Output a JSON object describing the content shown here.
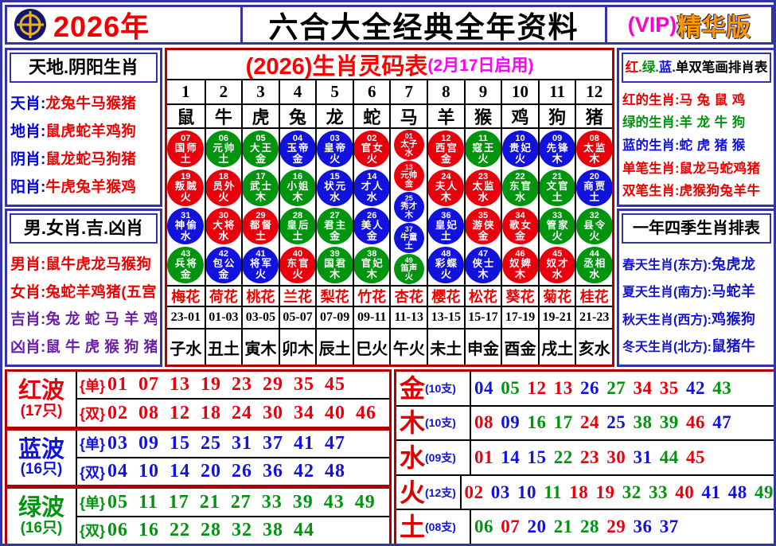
{
  "header": {
    "year": "2026年",
    "title": "六合大全经典全年资料",
    "vip_prefix": "(VIP)",
    "vip_suffix": "精华版"
  },
  "palette": {
    "red": "#e8000d",
    "blue": "#1212dd",
    "green": "#00940f",
    "label_blue": "#0000e6",
    "text_red": "#ee0000",
    "purple": "#6a1fa8",
    "magenta": "#ff00ff",
    "season_blue": "#1414cc"
  },
  "ball_color_sets": {
    "red": [
      1,
      2,
      7,
      8,
      12,
      13,
      18,
      19,
      23,
      24,
      29,
      30,
      34,
      35,
      40,
      45,
      46
    ],
    "blue": [
      3,
      4,
      9,
      10,
      14,
      15,
      20,
      25,
      26,
      31,
      36,
      37,
      41,
      42,
      47,
      48
    ],
    "green": [
      5,
      6,
      11,
      16,
      17,
      21,
      22,
      27,
      28,
      32,
      33,
      38,
      39,
      43,
      44,
      49
    ]
  },
  "left_panel": {
    "section1": {
      "title": "天地.阴阳生肖",
      "rows": [
        {
          "label": "天肖",
          "value": "龙兔牛马猴猪",
          "scheme": "bluered"
        },
        {
          "label": "地肖",
          "value": "鼠虎蛇羊鸡狗",
          "scheme": "bluered"
        },
        {
          "label": "阴肖",
          "value": "鼠龙蛇马狗猪",
          "scheme": "bluered"
        },
        {
          "label": "阳肖",
          "value": "牛虎兔羊猴鸡",
          "scheme": "bluered"
        }
      ]
    },
    "section2": {
      "title": "男.女肖.吉.凶肖",
      "rows": [
        {
          "label": "男肖",
          "value": "鼠牛虎龙马猴狗",
          "scheme": "red"
        },
        {
          "label": "女肖",
          "value": "兔蛇羊鸡猪(五宫)",
          "scheme": "red"
        },
        {
          "label": "吉肖",
          "value": "兔 龙 蛇 马 羊 鸡",
          "scheme": "purple"
        },
        {
          "label": "凶肖",
          "value": "鼠 牛 虎 猴 狗 猪",
          "scheme": "purple"
        }
      ]
    }
  },
  "code_table": {
    "title_main": "(2026)生肖灵码表",
    "title_note": "(2月17日启用)",
    "col_numbers": [
      "1",
      "2",
      "3",
      "4",
      "5",
      "6",
      "7",
      "8",
      "9",
      "10",
      "11",
      "12"
    ],
    "zodiacs": [
      "鼠",
      "牛",
      "虎",
      "兔",
      "龙",
      "蛇",
      "马",
      "羊",
      "猴",
      "鸡",
      "狗",
      "猪"
    ],
    "columns": [
      [
        {
          "num": "07",
          "name": "国师",
          "element": "土"
        },
        {
          "num": "19",
          "name": "叛贼",
          "element": "火"
        },
        {
          "num": "31",
          "name": "神偷",
          "element": "水"
        },
        {
          "num": "43",
          "name": "兵将",
          "element": "金"
        }
      ],
      [
        {
          "num": "06",
          "name": "元帅",
          "element": "土"
        },
        {
          "num": "18",
          "name": "员外",
          "element": "火"
        },
        {
          "num": "30",
          "name": "大将",
          "element": "水"
        },
        {
          "num": "42",
          "name": "包公",
          "element": "金"
        }
      ],
      [
        {
          "num": "05",
          "name": "大王",
          "element": "金"
        },
        {
          "num": "17",
          "name": "武士",
          "element": "木"
        },
        {
          "num": "29",
          "name": "都督",
          "element": "土"
        },
        {
          "num": "41",
          "name": "将军",
          "element": "火"
        }
      ],
      [
        {
          "num": "04",
          "name": "玉帝",
          "element": "金"
        },
        {
          "num": "16",
          "name": "小姐",
          "element": "木"
        },
        {
          "num": "28",
          "name": "皇后",
          "element": "土"
        },
        {
          "num": "40",
          "name": "东官",
          "element": "火"
        }
      ],
      [
        {
          "num": "03",
          "name": "皇帝",
          "element": "火"
        },
        {
          "num": "15",
          "name": "状元",
          "element": "水"
        },
        {
          "num": "27",
          "name": "君主",
          "element": "金"
        },
        {
          "num": "39",
          "name": "国君",
          "element": "木"
        }
      ],
      [
        {
          "num": "02",
          "name": "官女",
          "element": "火"
        },
        {
          "num": "14",
          "name": "才人",
          "element": "水"
        },
        {
          "num": "26",
          "name": "美人",
          "element": "金"
        },
        {
          "num": "38",
          "name": "官妃",
          "element": "木"
        }
      ],
      [
        {
          "num": "01",
          "name": "太子",
          "element": "水"
        },
        {
          "num": "13",
          "name": "元帅",
          "element": "金"
        },
        {
          "num": "25",
          "name": "秀才",
          "element": "木"
        },
        {
          "num": "37",
          "name": "牛童",
          "element": "土"
        },
        {
          "num": "49",
          "name": "笛声",
          "element": "火"
        }
      ],
      [
        {
          "num": "12",
          "name": "西宫",
          "element": "金"
        },
        {
          "num": "24",
          "name": "夫人",
          "element": "木"
        },
        {
          "num": "36",
          "name": "皇妃",
          "element": "土"
        },
        {
          "num": "48",
          "name": "彩蝶",
          "element": "火"
        }
      ],
      [
        {
          "num": "11",
          "name": "寇王",
          "element": "火"
        },
        {
          "num": "23",
          "name": "太监",
          "element": "水"
        },
        {
          "num": "35",
          "name": "游侠",
          "element": "金"
        },
        {
          "num": "47",
          "name": "侠士",
          "element": "木"
        }
      ],
      [
        {
          "num": "10",
          "name": "贵妃",
          "element": "火"
        },
        {
          "num": "22",
          "name": "东官",
          "element": "水"
        },
        {
          "num": "34",
          "name": "歌女",
          "element": "金"
        },
        {
          "num": "46",
          "name": "奴婢",
          "element": "木"
        }
      ],
      [
        {
          "num": "09",
          "name": "先锋",
          "element": "木"
        },
        {
          "num": "21",
          "name": "文官",
          "element": "土"
        },
        {
          "num": "33",
          "name": "管家",
          "element": "火"
        },
        {
          "num": "45",
          "name": "奴才",
          "element": "水"
        }
      ],
      [
        {
          "num": "08",
          "name": "太监",
          "element": "木"
        },
        {
          "num": "20",
          "name": "商贾",
          "element": "土"
        },
        {
          "num": "32",
          "name": "县令",
          "element": "火"
        },
        {
          "num": "44",
          "name": "丞相",
          "element": "水"
        }
      ]
    ],
    "flowers": [
      "梅花",
      "荷花",
      "桃花",
      "兰花",
      "梨花",
      "竹花",
      "杏花",
      "樱花",
      "松花",
      "葵花",
      "菊花",
      "桂花"
    ],
    "hours": [
      "23-01",
      "01-03",
      "03-05",
      "05-07",
      "07-09",
      "09-11",
      "11-13",
      "13-15",
      "15-17",
      "17-19",
      "19-21",
      "21-23"
    ],
    "branches": [
      "子水",
      "丑土",
      "寅木",
      "卯木",
      "辰土",
      "巳火",
      "午火",
      "未土",
      "申金",
      "酉金",
      "戌土",
      "亥水"
    ]
  },
  "right_panel": {
    "section1": {
      "title_parts": [
        {
          "text": "红.",
          "color": "#ee0000"
        },
        {
          "text": "绿.",
          "color": "#00940f"
        },
        {
          "text": "蓝.",
          "color": "#1212dd"
        },
        {
          "text": "单双笔画排肖表",
          "color": "#000000"
        }
      ],
      "rows": [
        {
          "label": "红的生肖",
          "value": "马 兔 鼠 鸡",
          "color": "#ee0000"
        },
        {
          "label": "绿的生肖",
          "value": "羊 龙 牛 狗",
          "color": "#00940f"
        },
        {
          "label": "蓝的生肖",
          "value": "蛇 虎 猪 猴",
          "color": "#1212dd"
        },
        {
          "label": "单笔生肖",
          "value": "鼠龙马蛇鸡猪",
          "color": "#ee0000"
        },
        {
          "label": "双笔生肖",
          "value": "虎猴狗兔羊牛",
          "color": "#ee0000"
        }
      ]
    },
    "section2": {
      "title": "一年四季生肖排表",
      "rows": [
        {
          "label": "春天生肖(东方)",
          "value": "兔虎龙"
        },
        {
          "label": "夏天生肖(南方)",
          "value": "马蛇羊"
        },
        {
          "label": "秋天生肖(西方)",
          "value": "鸡猴狗"
        },
        {
          "label": "冬天生肖(北方)",
          "value": "鼠猪牛"
        }
      ]
    }
  },
  "waves": [
    {
      "name": "红波",
      "count": "(17只)",
      "scheme": "red",
      "odd_tag": "{单}",
      "odd": [
        "01",
        "07",
        "13",
        "19",
        "23",
        "29",
        "35",
        "45"
      ],
      "even_tag": "{双}",
      "even": [
        "02",
        "08",
        "12",
        "18",
        "24",
        "30",
        "34",
        "40",
        "46"
      ]
    },
    {
      "name": "蓝波",
      "count": "(16只)",
      "scheme": "blue",
      "odd_tag": "{单}",
      "odd": [
        "03",
        "09",
        "15",
        "25",
        "31",
        "37",
        "41",
        "47"
      ],
      "even_tag": "{双}",
      "even": [
        "04",
        "10",
        "14",
        "20",
        "26",
        "36",
        "42",
        "48"
      ]
    },
    {
      "name": "绿波",
      "count": "(16只)",
      "scheme": "green",
      "odd_tag": "{单}",
      "odd": [
        "05",
        "11",
        "17",
        "21",
        "27",
        "33",
        "39",
        "43",
        "49"
      ],
      "even_tag": "{双}",
      "even": [
        "06",
        "16",
        "22",
        "28",
        "32",
        "38",
        "44"
      ]
    }
  ],
  "five_elements": [
    {
      "name": "金",
      "count": "(10支)",
      "numbers": [
        "04",
        "05",
        "12",
        "13",
        "26",
        "27",
        "34",
        "35",
        "42",
        "43"
      ]
    },
    {
      "name": "木",
      "count": "(10支)",
      "numbers": [
        "08",
        "09",
        "16",
        "17",
        "24",
        "25",
        "38",
        "39",
        "46",
        "47"
      ]
    },
    {
      "name": "水",
      "count": "(09支)",
      "numbers": [
        "01",
        "14",
        "15",
        "22",
        "23",
        "30",
        "31",
        "44",
        "45"
      ]
    },
    {
      "name": "火",
      "count": "(12支)",
      "numbers": [
        "02",
        "03",
        "10",
        "11",
        "18",
        "19",
        "32",
        "33",
        "40",
        "41",
        "48",
        "49"
      ]
    },
    {
      "name": "土",
      "count": "(08支)",
      "numbers": [
        "06",
        "07",
        "20",
        "21",
        "28",
        "29",
        "36",
        "37"
      ]
    }
  ]
}
